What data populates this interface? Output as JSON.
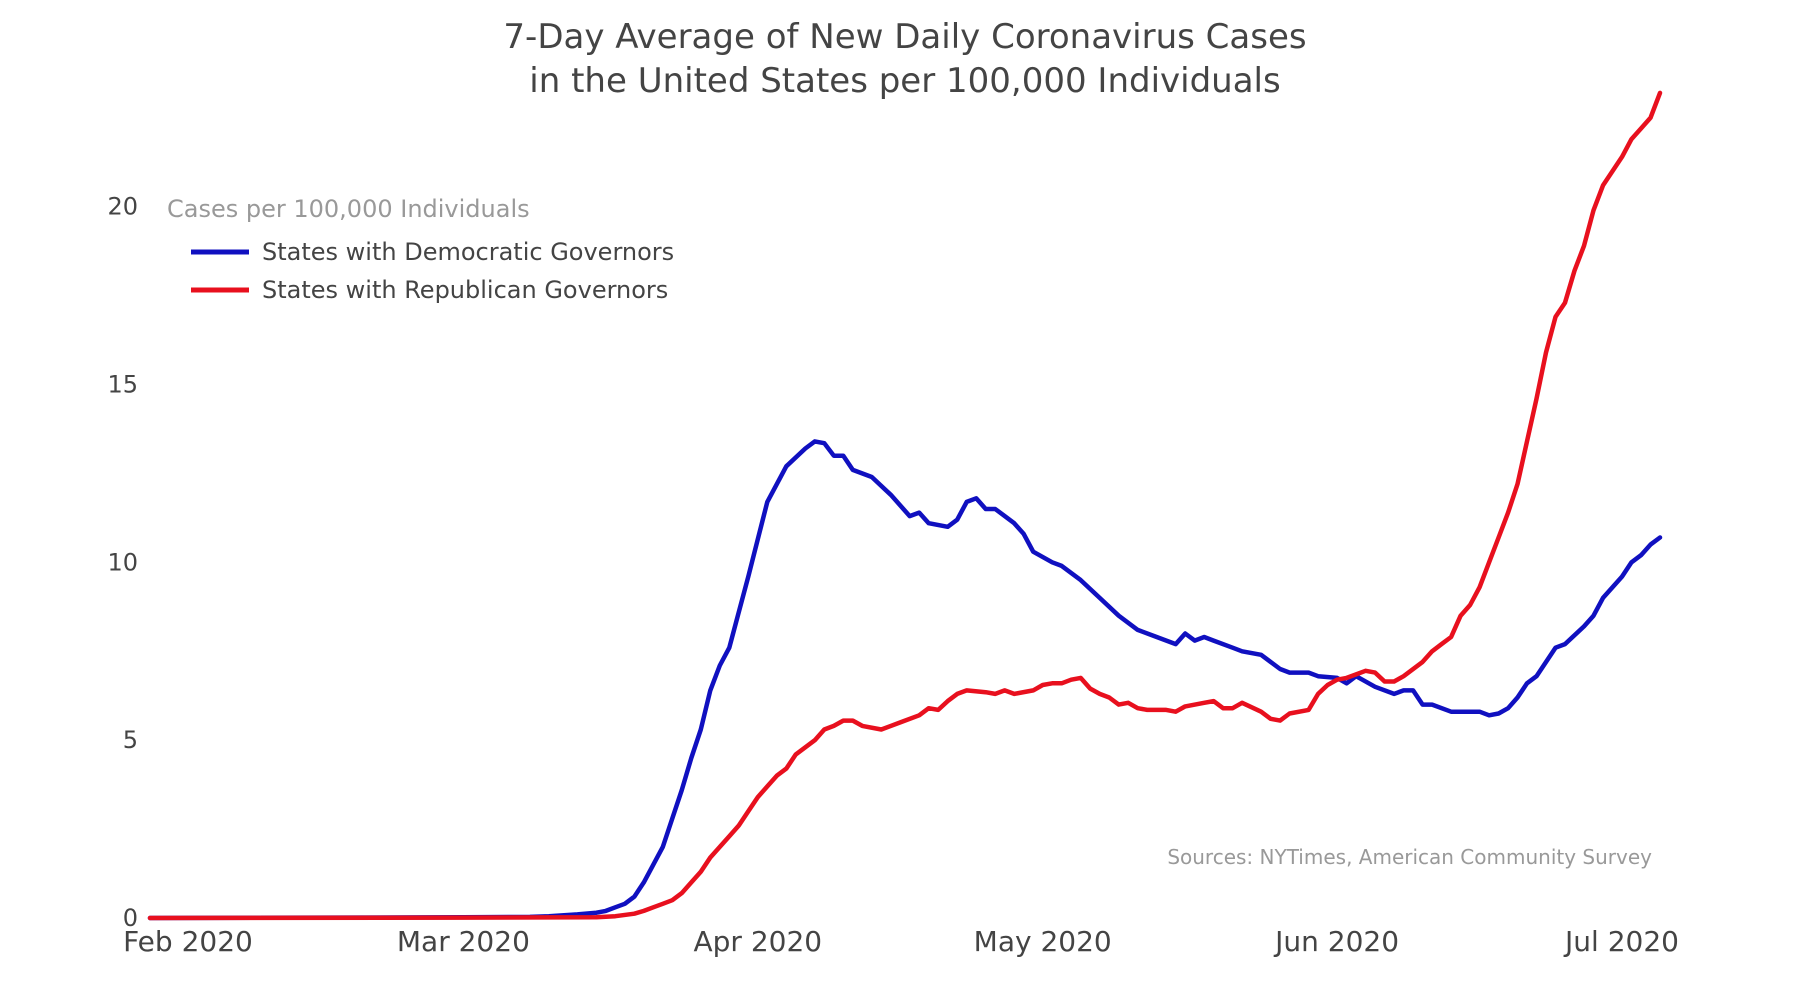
{
  "chart_data": {
    "type": "line",
    "title_line1": "7-Day Average of New Daily Coronavirus Cases",
    "title_line2": "in the United States per 100,000 Individuals",
    "ylabel": "Cases per 100,000 Individuals",
    "xlabel": "",
    "source": "Sources: NYTimes, American Community Survey",
    "ylim": [
      0,
      23
    ],
    "y_ticks": [
      {
        "value": 0,
        "label": "0"
      },
      {
        "value": 5,
        "label": "5"
      },
      {
        "value": 10,
        "label": "10"
      },
      {
        "value": 15,
        "label": "15"
      },
      {
        "value": 20,
        "label": "20"
      }
    ],
    "x_domain": [
      "2020-01-28",
      "2020-07-05"
    ],
    "x_ticks": [
      {
        "date": "2020-02-01",
        "label": "Feb 2020"
      },
      {
        "date": "2020-03-01",
        "label": "Mar 2020"
      },
      {
        "date": "2020-04-01",
        "label": "Apr 2020"
      },
      {
        "date": "2020-05-01",
        "label": "May 2020"
      },
      {
        "date": "2020-06-01",
        "label": "Jun 2020"
      },
      {
        "date": "2020-07-01",
        "label": "Jul 2020"
      }
    ],
    "legend_position": "top-left",
    "series": [
      {
        "name": "States with Democratic Governors",
        "color": "#1010c0",
        "points": [
          [
            "2020-01-28",
            0
          ],
          [
            "2020-02-15",
            0.01
          ],
          [
            "2020-03-01",
            0.02
          ],
          [
            "2020-03-08",
            0.03
          ],
          [
            "2020-03-10",
            0.05
          ],
          [
            "2020-03-13",
            0.1
          ],
          [
            "2020-03-15",
            0.15
          ],
          [
            "2020-03-16",
            0.2
          ],
          [
            "2020-03-17",
            0.3
          ],
          [
            "2020-03-18",
            0.4
          ],
          [
            "2020-03-19",
            0.6
          ],
          [
            "2020-03-20",
            1.0
          ],
          [
            "2020-03-21",
            1.5
          ],
          [
            "2020-03-22",
            2.0
          ],
          [
            "2020-03-23",
            2.8
          ],
          [
            "2020-03-24",
            3.6
          ],
          [
            "2020-03-25",
            4.5
          ],
          [
            "2020-03-26",
            5.3
          ],
          [
            "2020-03-27",
            6.4
          ],
          [
            "2020-03-28",
            7.1
          ],
          [
            "2020-03-29",
            7.6
          ],
          [
            "2020-03-30",
            8.6
          ],
          [
            "2020-03-31",
            9.6
          ],
          [
            "2020-04-02",
            11.7
          ],
          [
            "2020-04-04",
            12.7
          ],
          [
            "2020-04-06",
            13.2
          ],
          [
            "2020-04-07",
            13.4
          ],
          [
            "2020-04-08",
            13.35
          ],
          [
            "2020-04-09",
            13.0
          ],
          [
            "2020-04-10",
            13.0
          ],
          [
            "2020-04-11",
            12.6
          ],
          [
            "2020-04-13",
            12.4
          ],
          [
            "2020-04-15",
            11.9
          ],
          [
            "2020-04-17",
            11.3
          ],
          [
            "2020-04-18",
            11.4
          ],
          [
            "2020-04-19",
            11.1
          ],
          [
            "2020-04-21",
            11.0
          ],
          [
            "2020-04-22",
            11.2
          ],
          [
            "2020-04-23",
            11.7
          ],
          [
            "2020-04-24",
            11.8
          ],
          [
            "2020-04-25",
            11.5
          ],
          [
            "2020-04-26",
            11.5
          ],
          [
            "2020-04-27",
            11.3
          ],
          [
            "2020-04-28",
            11.1
          ],
          [
            "2020-04-29",
            10.8
          ],
          [
            "2020-04-30",
            10.3
          ],
          [
            "2020-05-02",
            10.0
          ],
          [
            "2020-05-03",
            9.9
          ],
          [
            "2020-05-05",
            9.5
          ],
          [
            "2020-05-07",
            9.0
          ],
          [
            "2020-05-09",
            8.5
          ],
          [
            "2020-05-11",
            8.1
          ],
          [
            "2020-05-13",
            7.9
          ],
          [
            "2020-05-15",
            7.7
          ],
          [
            "2020-05-16",
            8.0
          ],
          [
            "2020-05-17",
            7.8
          ],
          [
            "2020-05-18",
            7.9
          ],
          [
            "2020-05-19",
            7.8
          ],
          [
            "2020-05-21",
            7.6
          ],
          [
            "2020-05-22",
            7.5
          ],
          [
            "2020-05-24",
            7.4
          ],
          [
            "2020-05-25",
            7.2
          ],
          [
            "2020-05-26",
            7.0
          ],
          [
            "2020-05-27",
            6.9
          ],
          [
            "2020-05-29",
            6.9
          ],
          [
            "2020-05-30",
            6.8
          ],
          [
            "2020-06-01",
            6.75
          ],
          [
            "2020-06-02",
            6.6
          ],
          [
            "2020-06-03",
            6.8
          ],
          [
            "2020-06-05",
            6.5
          ],
          [
            "2020-06-07",
            6.3
          ],
          [
            "2020-06-08",
            6.4
          ],
          [
            "2020-06-09",
            6.4
          ],
          [
            "2020-06-10",
            6.0
          ],
          [
            "2020-06-11",
            6.0
          ],
          [
            "2020-06-13",
            5.8
          ],
          [
            "2020-06-15",
            5.8
          ],
          [
            "2020-06-16",
            5.8
          ],
          [
            "2020-06-17",
            5.7
          ],
          [
            "2020-06-18",
            5.75
          ],
          [
            "2020-06-19",
            5.9
          ],
          [
            "2020-06-20",
            6.2
          ],
          [
            "2020-06-21",
            6.6
          ],
          [
            "2020-06-22",
            6.8
          ],
          [
            "2020-06-24",
            7.6
          ],
          [
            "2020-06-25",
            7.7
          ],
          [
            "2020-06-27",
            8.2
          ],
          [
            "2020-06-28",
            8.5
          ],
          [
            "2020-06-29",
            9.0
          ],
          [
            "2020-06-30",
            9.3
          ],
          [
            "2020-07-01",
            9.6
          ],
          [
            "2020-07-02",
            10.0
          ],
          [
            "2020-07-03",
            10.2
          ],
          [
            "2020-07-04",
            10.5
          ],
          [
            "2020-07-05",
            10.7
          ]
        ]
      },
      {
        "name": "States with Republican Governors",
        "color": "#e8101e",
        "points": [
          [
            "2020-01-28",
            0
          ],
          [
            "2020-03-01",
            0.01
          ],
          [
            "2020-03-15",
            0.02
          ],
          [
            "2020-03-17",
            0.05
          ],
          [
            "2020-03-19",
            0.12
          ],
          [
            "2020-03-20",
            0.2
          ],
          [
            "2020-03-21",
            0.3
          ],
          [
            "2020-03-22",
            0.4
          ],
          [
            "2020-03-23",
            0.5
          ],
          [
            "2020-03-24",
            0.7
          ],
          [
            "2020-03-25",
            1.0
          ],
          [
            "2020-03-26",
            1.3
          ],
          [
            "2020-03-27",
            1.7
          ],
          [
            "2020-03-28",
            2.0
          ],
          [
            "2020-03-29",
            2.3
          ],
          [
            "2020-03-30",
            2.6
          ],
          [
            "2020-03-31",
            3.0
          ],
          [
            "2020-04-01",
            3.4
          ],
          [
            "2020-04-02",
            3.7
          ],
          [
            "2020-04-03",
            4.0
          ],
          [
            "2020-04-04",
            4.2
          ],
          [
            "2020-04-05",
            4.6
          ],
          [
            "2020-04-07",
            5.0
          ],
          [
            "2020-04-08",
            5.3
          ],
          [
            "2020-04-09",
            5.4
          ],
          [
            "2020-04-10",
            5.55
          ],
          [
            "2020-04-11",
            5.55
          ],
          [
            "2020-04-12",
            5.4
          ],
          [
            "2020-04-14",
            5.3
          ],
          [
            "2020-04-16",
            5.5
          ],
          [
            "2020-04-18",
            5.7
          ],
          [
            "2020-04-19",
            5.9
          ],
          [
            "2020-04-20",
            5.85
          ],
          [
            "2020-04-21",
            6.1
          ],
          [
            "2020-04-22",
            6.3
          ],
          [
            "2020-04-23",
            6.4
          ],
          [
            "2020-04-25",
            6.35
          ],
          [
            "2020-04-26",
            6.3
          ],
          [
            "2020-04-27",
            6.4
          ],
          [
            "2020-04-28",
            6.3
          ],
          [
            "2020-04-30",
            6.4
          ],
          [
            "2020-05-01",
            6.55
          ],
          [
            "2020-05-02",
            6.6
          ],
          [
            "2020-05-03",
            6.6
          ],
          [
            "2020-05-04",
            6.7
          ],
          [
            "2020-05-05",
            6.75
          ],
          [
            "2020-05-06",
            6.45
          ],
          [
            "2020-05-07",
            6.3
          ],
          [
            "2020-05-08",
            6.2
          ],
          [
            "2020-05-09",
            6.0
          ],
          [
            "2020-05-10",
            6.05
          ],
          [
            "2020-05-11",
            5.9
          ],
          [
            "2020-05-12",
            5.85
          ],
          [
            "2020-05-14",
            5.85
          ],
          [
            "2020-05-15",
            5.8
          ],
          [
            "2020-05-16",
            5.95
          ],
          [
            "2020-05-18",
            6.05
          ],
          [
            "2020-05-19",
            6.1
          ],
          [
            "2020-05-20",
            5.9
          ],
          [
            "2020-05-21",
            5.9
          ],
          [
            "2020-05-22",
            6.05
          ],
          [
            "2020-05-24",
            5.8
          ],
          [
            "2020-05-25",
            5.6
          ],
          [
            "2020-05-26",
            5.55
          ],
          [
            "2020-05-27",
            5.75
          ],
          [
            "2020-05-29",
            5.85
          ],
          [
            "2020-05-30",
            6.3
          ],
          [
            "2020-05-31",
            6.55
          ],
          [
            "2020-06-01",
            6.7
          ],
          [
            "2020-06-02",
            6.75
          ],
          [
            "2020-06-03",
            6.85
          ],
          [
            "2020-06-04",
            6.95
          ],
          [
            "2020-06-05",
            6.9
          ],
          [
            "2020-06-06",
            6.65
          ],
          [
            "2020-06-07",
            6.65
          ],
          [
            "2020-06-08",
            6.8
          ],
          [
            "2020-06-10",
            7.2
          ],
          [
            "2020-06-11",
            7.5
          ],
          [
            "2020-06-12",
            7.7
          ],
          [
            "2020-06-13",
            7.9
          ],
          [
            "2020-06-14",
            8.5
          ],
          [
            "2020-06-15",
            8.8
          ],
          [
            "2020-06-16",
            9.3
          ],
          [
            "2020-06-17",
            10.0
          ],
          [
            "2020-06-18",
            10.7
          ],
          [
            "2020-06-19",
            11.4
          ],
          [
            "2020-06-20",
            12.2
          ],
          [
            "2020-06-21",
            13.4
          ],
          [
            "2020-06-22",
            14.6
          ],
          [
            "2020-06-23",
            15.9
          ],
          [
            "2020-06-24",
            16.9
          ],
          [
            "2020-06-25",
            17.3
          ],
          [
            "2020-06-26",
            18.2
          ],
          [
            "2020-06-27",
            18.9
          ],
          [
            "2020-06-28",
            19.9
          ],
          [
            "2020-06-29",
            20.6
          ],
          [
            "2020-07-01",
            21.4
          ],
          [
            "2020-07-02",
            21.9
          ],
          [
            "2020-07-03",
            22.2
          ],
          [
            "2020-07-04",
            22.5
          ],
          [
            "2020-07-05",
            23.2
          ]
        ]
      }
    ]
  }
}
